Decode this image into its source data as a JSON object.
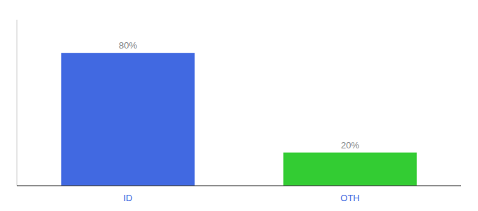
{
  "chart_data": {
    "type": "bar",
    "categories": [
      "ID",
      "OTH"
    ],
    "values": [
      80,
      20
    ],
    "value_labels": [
      "80%",
      "20%"
    ],
    "colors": [
      "#4169e1",
      "#33cc33"
    ],
    "ylim": [
      0,
      100
    ],
    "data_labels": true,
    "tick_labels": "x",
    "grid": false
  }
}
